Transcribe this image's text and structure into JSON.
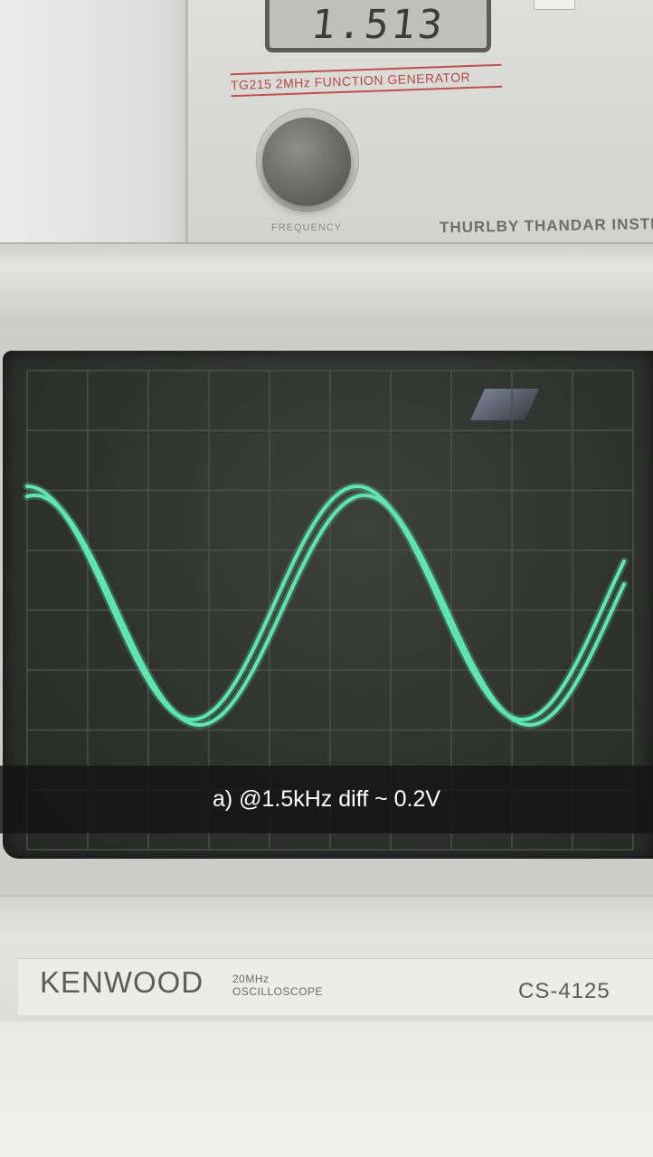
{
  "function_generator": {
    "display_value": "1.513",
    "model_label": "TG215 2MHz FUNCTION GENERATOR",
    "knob_label": "FREQUENCY",
    "brand": "THURLBY THANDAR INSTRU"
  },
  "oscilloscope": {
    "brand": "KENWOOD",
    "bandwidth": "20MHz",
    "type": "OSCILLOSCOPE",
    "model": "CS-4125"
  },
  "caption": {
    "text": "a) @1.5kHz diff ~ 0.2V"
  },
  "colors": {
    "trace": "#5ee6b0",
    "screen": "#303230",
    "caption_bg": "#141414"
  }
}
